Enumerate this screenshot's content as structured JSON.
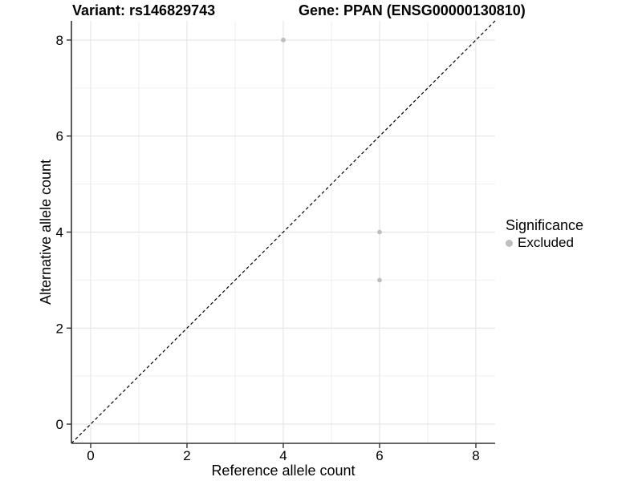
{
  "chart_data": {
    "type": "scatter",
    "title_left": "Variant: rs146829743",
    "title_right": "Gene: PPAN (ENSG00000130810)",
    "xlabel": "Reference allele count",
    "ylabel": "Alternative allele count",
    "xlim": [
      -0.4,
      8.4
    ],
    "ylim": [
      -0.4,
      8.4
    ],
    "x_ticks": [
      0,
      2,
      4,
      6,
      8
    ],
    "y_ticks": [
      0,
      2,
      4,
      6,
      8
    ],
    "x_minor_ticks": [
      1,
      3,
      5,
      7
    ],
    "y_minor_ticks": [
      1,
      3,
      5,
      7
    ],
    "series": [
      {
        "name": "Excluded",
        "color": "#bebebe",
        "points": [
          [
            4,
            8
          ],
          [
            6,
            4
          ],
          [
            6,
            3
          ]
        ]
      }
    ],
    "reference_line": {
      "kind": "identity",
      "style": "dashed",
      "color": "#000000"
    },
    "legend": {
      "title": "Significance",
      "position": "right"
    },
    "grid": {
      "major_color": "#e2e2e2",
      "minor_color": "#efefef",
      "visible": true
    },
    "axis_line_color": "#333333",
    "tick_label_color": "#000000"
  }
}
